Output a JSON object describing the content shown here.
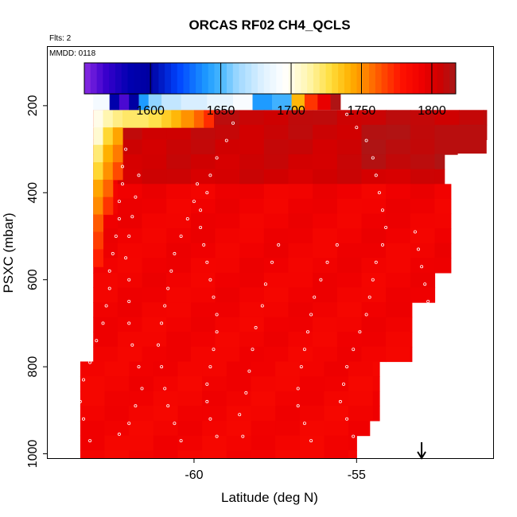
{
  "chart_data": {
    "type": "heatmap",
    "title": "ORCAS RF02 CH4_QCLS",
    "flights_label": "Flts: 2",
    "date_label": "MMDD: 0118",
    "xlabel": "Latitude (deg N)",
    "ylabel": "PSXC (mbar)",
    "xlim": [
      -64.5,
      -50.8
    ],
    "ylim": [
      1010,
      65
    ],
    "x_ticks": [
      -60,
      -55
    ],
    "y_ticks": [
      200,
      400,
      600,
      800,
      1000
    ],
    "colorbar": {
      "range": [
        1553,
        1817
      ],
      "ticks": [
        1600,
        1650,
        1700,
        1750,
        1800
      ],
      "stops": [
        {
          "v": 1553,
          "c": "#8a2be2"
        },
        {
          "v": 1568,
          "c": "#3a00cd"
        },
        {
          "v": 1585,
          "c": "#0000b0"
        },
        {
          "v": 1600,
          "c": "#0000a0"
        },
        {
          "v": 1620,
          "c": "#0044ff"
        },
        {
          "v": 1640,
          "c": "#1e9bff"
        },
        {
          "v": 1650,
          "c": "#48b7ff"
        },
        {
          "v": 1662,
          "c": "#9ed8ff"
        },
        {
          "v": 1680,
          "c": "#dff1ff"
        },
        {
          "v": 1695,
          "c": "#ffffff"
        },
        {
          "v": 1712,
          "c": "#fff6b0"
        },
        {
          "v": 1728,
          "c": "#ffde3c"
        },
        {
          "v": 1742,
          "c": "#ffb000"
        },
        {
          "v": 1752,
          "c": "#ff8a00"
        },
        {
          "v": 1765,
          "c": "#ff4a00"
        },
        {
          "v": 1778,
          "c": "#ff1200"
        },
        {
          "v": 1792,
          "c": "#f00000"
        },
        {
          "v": 1805,
          "c": "#d00000"
        },
        {
          "v": 1817,
          "c": "#a81818"
        }
      ]
    },
    "grid_cells": {
      "lat_step": 0.75,
      "pres_step": 34,
      "top_strip": {
        "pres": [
          165,
          210
        ],
        "values_by_lat": [
          {
            "lat0": -63.1,
            "lat1": -62.6,
            "v": 1690
          },
          {
            "lat0": -62.6,
            "lat1": -62.3,
            "v": 1590
          },
          {
            "lat0": -62.3,
            "lat1": -62.0,
            "v": 1565
          },
          {
            "lat0": -62.0,
            "lat1": -61.7,
            "v": 1598
          },
          {
            "lat0": -61.7,
            "lat1": -61.4,
            "v": 1640
          },
          {
            "lat0": -61.4,
            "lat1": -61.0,
            "v": 1660
          },
          {
            "lat0": -61.0,
            "lat1": -60.4,
            "v": 1672
          },
          {
            "lat0": -60.4,
            "lat1": -59.6,
            "v": 1678
          },
          {
            "lat0": -59.6,
            "lat1": -58.8,
            "v": 1684
          },
          {
            "lat0": -58.8,
            "lat1": -58.2,
            "v": 1692
          },
          {
            "lat0": -58.2,
            "lat1": -57.6,
            "v": 1640
          },
          {
            "lat0": -57.6,
            "lat1": -57.0,
            "v": 1648
          },
          {
            "lat0": -57.0,
            "lat1": -56.6,
            "v": 1740
          },
          {
            "lat0": -56.6,
            "lat1": -56.2,
            "v": 1770
          },
          {
            "lat0": -56.2,
            "lat1": -55.8,
            "v": 1795
          },
          {
            "lat0": -55.8,
            "lat1": -55.5,
            "v": 1815
          }
        ]
      },
      "left_gradient": [
        {
          "lat0": -63.1,
          "lat1": -62.8,
          "pres": [
            210,
            250
          ],
          "v": 1700
        },
        {
          "lat0": -62.8,
          "lat1": -62.5,
          "pres": [
            210,
            250
          ],
          "v": 1712
        },
        {
          "lat0": -62.5,
          "lat1": -62.2,
          "pres": [
            210,
            250
          ],
          "v": 1718
        },
        {
          "lat0": -62.2,
          "lat1": -61.4,
          "pres": [
            210,
            250
          ],
          "v": 1722
        },
        {
          "lat0": -61.4,
          "lat1": -61.0,
          "pres": [
            210,
            250
          ],
          "v": 1726
        },
        {
          "lat0": -61.0,
          "lat1": -60.7,
          "pres": [
            210,
            250
          ],
          "v": 1733
        },
        {
          "lat0": -60.7,
          "lat1": -60.4,
          "pres": [
            210,
            250
          ],
          "v": 1740
        },
        {
          "lat0": -60.4,
          "lat1": -60.0,
          "pres": [
            210,
            250
          ],
          "v": 1750
        },
        {
          "lat0": -60.0,
          "lat1": -59.7,
          "pres": [
            210,
            250
          ],
          "v": 1760
        },
        {
          "lat0": -59.7,
          "lat1": -59.4,
          "pres": [
            210,
            250
          ],
          "v": 1772
        },
        {
          "lat0": -63.1,
          "lat1": -62.8,
          "pres": [
            250,
            290
          ],
          "v": 1705
        },
        {
          "lat0": -62.8,
          "lat1": -62.5,
          "pres": [
            250,
            290
          ],
          "v": 1730
        },
        {
          "lat0": -62.5,
          "lat1": -62.2,
          "pres": [
            250,
            290
          ],
          "v": 1745
        },
        {
          "lat0": -63.1,
          "lat1": -62.8,
          "pres": [
            290,
            330
          ],
          "v": 1720
        },
        {
          "lat0": -62.8,
          "lat1": -62.5,
          "pres": [
            290,
            330
          ],
          "v": 1742
        },
        {
          "lat0": -62.5,
          "lat1": -62.2,
          "pres": [
            290,
            330
          ],
          "v": 1755
        },
        {
          "lat0": -63.1,
          "lat1": -62.8,
          "pres": [
            330,
            370
          ],
          "v": 1730
        },
        {
          "lat0": -62.8,
          "lat1": -62.5,
          "pres": [
            330,
            370
          ],
          "v": 1750
        },
        {
          "lat0": -62.5,
          "lat1": -62.2,
          "pres": [
            330,
            370
          ],
          "v": 1765
        },
        {
          "lat0": -63.1,
          "lat1": -62.8,
          "pres": [
            370,
            410
          ],
          "v": 1745
        },
        {
          "lat0": -62.8,
          "lat1": -62.5,
          "pres": [
            370,
            410
          ],
          "v": 1760
        },
        {
          "lat0": -63.1,
          "lat1": -62.8,
          "pres": [
            410,
            450
          ],
          "v": 1752
        },
        {
          "lat0": -62.8,
          "lat1": -62.5,
          "pres": [
            410,
            450
          ],
          "v": 1770
        },
        {
          "lat0": -63.1,
          "lat1": -62.8,
          "pres": [
            450,
            490
          ],
          "v": 1762
        },
        {
          "lat0": -63.1,
          "lat1": -62.8,
          "pres": [
            490,
            530
          ],
          "v": 1768
        },
        {
          "lat0": -63.1,
          "lat1": -62.8,
          "pres": [
            530,
            570
          ],
          "v": 1775
        }
      ]
    },
    "flight_track": [
      [
        -63.2,
        970
      ],
      [
        -63.4,
        920
      ],
      [
        -63.5,
        880
      ],
      [
        -63.4,
        830
      ],
      [
        -63.2,
        790
      ],
      [
        -63.0,
        740
      ],
      [
        -62.8,
        700
      ],
      [
        -62.7,
        660
      ],
      [
        -62.6,
        620
      ],
      [
        -62.6,
        580
      ],
      [
        -62.5,
        540
      ],
      [
        -62.4,
        500
      ],
      [
        -62.3,
        460
      ],
      [
        -62.3,
        420
      ],
      [
        -62.2,
        380
      ],
      [
        -62.2,
        340
      ],
      [
        -62.1,
        300
      ],
      [
        -62.3,
        955
      ],
      [
        -62.0,
        930
      ],
      [
        -61.8,
        890
      ],
      [
        -61.6,
        850
      ],
      [
        -61.7,
        800
      ],
      [
        -61.9,
        750
      ],
      [
        -62.0,
        700
      ],
      [
        -62.0,
        650
      ],
      [
        -62.0,
        600
      ],
      [
        -62.1,
        550
      ],
      [
        -62.0,
        500
      ],
      [
        -61.9,
        455
      ],
      [
        -61.8,
        410
      ],
      [
        -61.7,
        360
      ],
      [
        -60.4,
        970
      ],
      [
        -60.6,
        930
      ],
      [
        -60.8,
        890
      ],
      [
        -60.9,
        850
      ],
      [
        -61.0,
        800
      ],
      [
        -61.1,
        750
      ],
      [
        -61.0,
        700
      ],
      [
        -60.9,
        660
      ],
      [
        -60.8,
        620
      ],
      [
        -60.7,
        580
      ],
      [
        -60.6,
        540
      ],
      [
        -60.4,
        500
      ],
      [
        -60.2,
        460
      ],
      [
        -60.0,
        420
      ],
      [
        -59.9,
        380
      ],
      [
        -59.3,
        960
      ],
      [
        -59.5,
        920
      ],
      [
        -59.6,
        880
      ],
      [
        -59.6,
        840
      ],
      [
        -59.5,
        800
      ],
      [
        -59.4,
        760
      ],
      [
        -59.3,
        720
      ],
      [
        -59.3,
        680
      ],
      [
        -59.4,
        640
      ],
      [
        -59.5,
        600
      ],
      [
        -59.6,
        560
      ],
      [
        -59.7,
        520
      ],
      [
        -59.8,
        480
      ],
      [
        -59.8,
        440
      ],
      [
        -59.6,
        400
      ],
      [
        -59.5,
        360
      ],
      [
        -59.3,
        320
      ],
      [
        -59.0,
        280
      ],
      [
        -58.8,
        240
      ],
      [
        -58.5,
        960
      ],
      [
        -58.6,
        910
      ],
      [
        -58.4,
        860
      ],
      [
        -58.3,
        810
      ],
      [
        -58.2,
        760
      ],
      [
        -58.1,
        710
      ],
      [
        -57.9,
        660
      ],
      [
        -57.8,
        610
      ],
      [
        -57.6,
        560
      ],
      [
        -57.4,
        520
      ],
      [
        -56.4,
        970
      ],
      [
        -56.6,
        930
      ],
      [
        -56.8,
        890
      ],
      [
        -56.8,
        850
      ],
      [
        -56.7,
        800
      ],
      [
        -56.6,
        760
      ],
      [
        -56.5,
        720
      ],
      [
        -56.4,
        680
      ],
      [
        -56.3,
        640
      ],
      [
        -56.1,
        600
      ],
      [
        -55.9,
        560
      ],
      [
        -55.6,
        520
      ],
      [
        -55.1,
        960
      ],
      [
        -55.3,
        920
      ],
      [
        -55.5,
        880
      ],
      [
        -55.4,
        840
      ],
      [
        -55.3,
        800
      ],
      [
        -55.1,
        760
      ],
      [
        -54.9,
        720
      ],
      [
        -54.7,
        680
      ],
      [
        -54.6,
        640
      ],
      [
        -54.5,
        600
      ],
      [
        -54.4,
        560
      ],
      [
        -54.2,
        520
      ],
      [
        -54.1,
        480
      ],
      [
        -54.2,
        440
      ],
      [
        -54.3,
        400
      ],
      [
        -54.4,
        360
      ],
      [
        -54.5,
        320
      ],
      [
        -54.7,
        280
      ],
      [
        -55.0,
        250
      ],
      [
        -55.3,
        220
      ],
      [
        -53.2,
        490
      ],
      [
        -53.1,
        530
      ],
      [
        -53.0,
        570
      ],
      [
        -52.9,
        610
      ],
      [
        -52.8,
        650
      ],
      [
        -52.6,
        690
      ],
      [
        -52.5,
        730
      ],
      [
        -52.4,
        770
      ],
      [
        -52.0,
        400
      ],
      [
        -51.9,
        360
      ],
      [
        -51.9,
        320
      ]
    ],
    "arrow_lat": -53.0
  }
}
